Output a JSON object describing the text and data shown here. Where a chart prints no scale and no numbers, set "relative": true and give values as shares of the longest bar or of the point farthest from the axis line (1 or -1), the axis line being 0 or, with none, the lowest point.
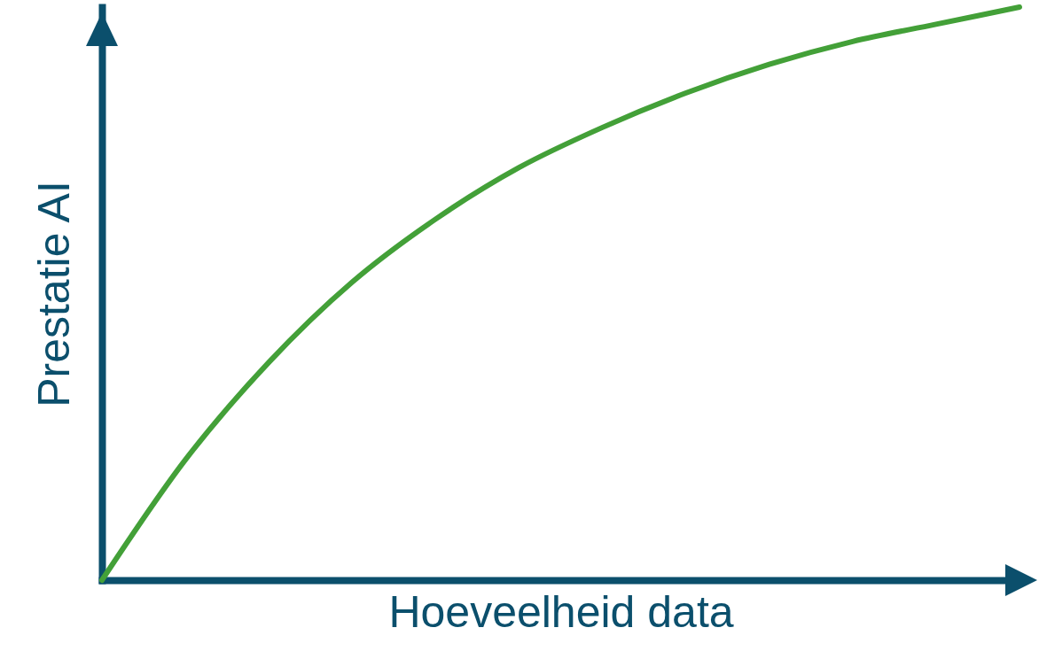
{
  "chart_data": {
    "type": "line",
    "relative": true,
    "xlabel": "Hoeveelheid data",
    "ylabel": "Prestatie AI",
    "categories": [
      null,
      null,
      null,
      null,
      null,
      null,
      null,
      null,
      null,
      null,
      null,
      null
    ],
    "series": [
      {
        "color": "#43a038",
        "values": [
          0,
          0.21,
          0.38,
          0.52,
          0.63,
          0.72,
          0.79,
          0.85,
          0.9,
          0.94,
          0.97,
          1.0
        ]
      }
    ],
    "grid": false,
    "marker": "none",
    "line_style": "solid"
  }
}
